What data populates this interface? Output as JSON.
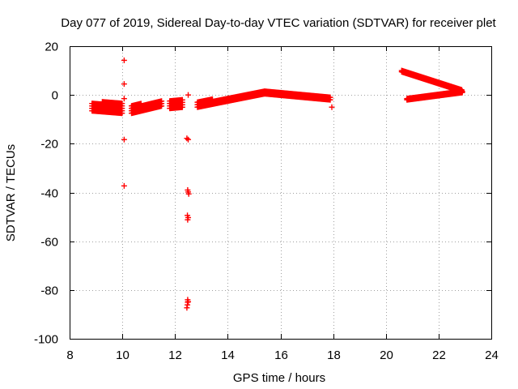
{
  "chart_data": {
    "type": "scatter",
    "title": "Day 077 of 2019, Sidereal Day-to-day VTEC variation (SDTVAR) for receiver plet",
    "xlabel": "GPS time / hours",
    "ylabel": "SDTVAR / TECUs",
    "xlim": [
      8,
      24
    ],
    "ylim": [
      -100,
      20
    ],
    "xticks": [
      8,
      10,
      12,
      14,
      16,
      18,
      20,
      22,
      24
    ],
    "yticks": [
      -100,
      -80,
      -60,
      -40,
      -20,
      0,
      20
    ],
    "xtick_labels": [
      "8",
      "10",
      "12",
      "14",
      "16",
      "18",
      "20",
      "22",
      "24"
    ],
    "ytick_labels": [
      "-100",
      "-80",
      "-60",
      "-40",
      "-20",
      "0",
      "20"
    ],
    "grid": true,
    "marker": "+",
    "color": "#ff0000",
    "series": [
      {
        "name": "SDTVAR",
        "segments": [
          {
            "x0": 8.85,
            "x1": 10.0,
            "y_lo": [
              -6.5,
              -7.5
            ],
            "y_hi": [
              -3.0,
              -2.5
            ],
            "band": true
          },
          {
            "x0": 10.35,
            "x1": 11.5,
            "y_lo": [
              -7.5,
              -4.5
            ],
            "y_hi": [
              -4.0,
              -2.5
            ],
            "band": true
          },
          {
            "x0": 11.8,
            "x1": 12.3,
            "y_lo": [
              -5.5,
              -5.0
            ],
            "y_hi": [
              -2.5,
              -2.0
            ],
            "band": true
          },
          {
            "x0": 12.85,
            "x1": 14.0,
            "y_lo": [
              -5.0,
              -2.5
            ],
            "y_hi": [
              -2.5,
              -1.0
            ],
            "band": true
          },
          {
            "x0": 14.0,
            "x1": 15.4,
            "y_lo": [
              -2.5,
              0.5
            ],
            "y_hi": [
              -1.0,
              1.5
            ],
            "band": true
          },
          {
            "x0": 15.4,
            "x1": 17.9,
            "y_lo": [
              0.5,
              -2.0
            ],
            "y_hi": [
              1.5,
              -0.5
            ],
            "band": true
          },
          {
            "x0": 20.6,
            "x1": 22.9,
            "y_lo": [
              9.5,
              1.5
            ],
            "y_hi": [
              10.0,
              2.0
            ],
            "band": false
          },
          {
            "x0": 20.8,
            "x1": 22.9,
            "y_lo": [
              -2.0,
              1.0
            ],
            "y_hi": [
              -1.5,
              1.5
            ],
            "band": false
          }
        ],
        "points": [
          [
            10.07,
            14.2
          ],
          [
            10.07,
            4.5
          ],
          [
            10.07,
            -1.5
          ],
          [
            10.07,
            -18.3
          ],
          [
            10.07,
            -37.3
          ],
          [
            12.5,
            0.0
          ],
          [
            12.45,
            -17.8
          ],
          [
            12.5,
            -18.3
          ],
          [
            12.48,
            -39.0
          ],
          [
            12.5,
            -39.8
          ],
          [
            12.52,
            -40.6
          ],
          [
            12.47,
            -49.4
          ],
          [
            12.5,
            -50.3
          ],
          [
            12.48,
            -51.2
          ],
          [
            12.48,
            -84.0
          ],
          [
            12.48,
            -85.0
          ],
          [
            12.47,
            -86.1
          ],
          [
            12.45,
            -87.3
          ],
          [
            12.5,
            -84.8
          ],
          [
            17.95,
            -5.0
          ]
        ]
      }
    ]
  }
}
